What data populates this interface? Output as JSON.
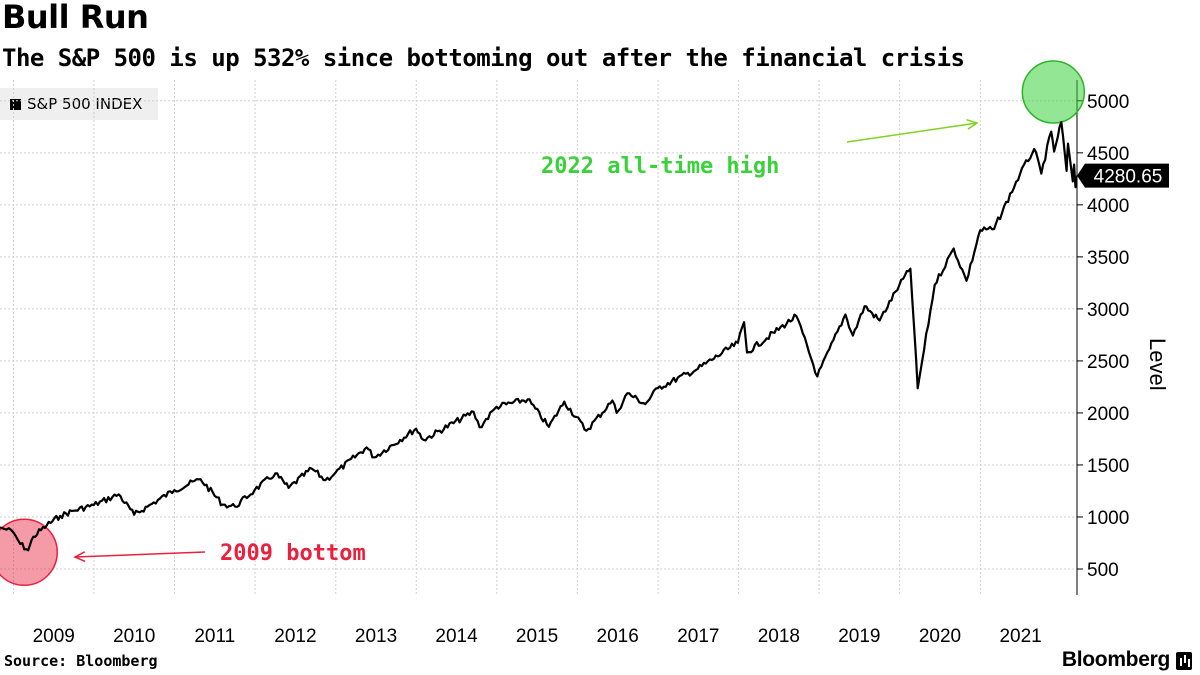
{
  "header": {
    "title": "Bull Run",
    "subtitle": "The S&P 500 is up 532% since bottoming out after the financial crisis"
  },
  "legend": {
    "label": "S&P 500 INDEX"
  },
  "footer": {
    "source": "Source: Bloomberg",
    "brand": "Bloomberg"
  },
  "colors": {
    "line": "#000000",
    "bottom_marker": "#e8213f",
    "high_marker": "#3ad13a",
    "high_arrow": "#7fd321",
    "grid": "#d0d0d0"
  },
  "chart_data": {
    "type": "line",
    "title": "Bull Run",
    "subtitle": "The S&P 500 is up 532% since bottoming out after the financial crisis",
    "ylabel": "Level",
    "xlabel": "",
    "grid": true,
    "legend_position": "top-left",
    "ylim": [
      250,
      5200
    ],
    "xlim": [
      "2008-11-01",
      "2022-03-15"
    ],
    "yticks": [
      500,
      1000,
      1500,
      2000,
      2500,
      3000,
      3500,
      4000,
      4500,
      5000
    ],
    "xticks": [
      "2009",
      "2010",
      "2011",
      "2012",
      "2013",
      "2014",
      "2015",
      "2016",
      "2017",
      "2018",
      "2019",
      "2020",
      "2021"
    ],
    "last_value_label": "4280.65",
    "series": [
      {
        "name": "S&P 500 INDEX",
        "points": [
          [
            "2008-11-01",
            900
          ],
          [
            "2008-12-01",
            880
          ],
          [
            "2009-01-01",
            850
          ],
          [
            "2009-02-01",
            740
          ],
          [
            "2009-03-09",
            680
          ],
          [
            "2009-04-01",
            810
          ],
          [
            "2009-06-01",
            920
          ],
          [
            "2009-08-01",
            1010
          ],
          [
            "2009-10-01",
            1060
          ],
          [
            "2009-12-31",
            1115
          ],
          [
            "2010-04-23",
            1217
          ],
          [
            "2010-07-02",
            1022
          ],
          [
            "2010-09-01",
            1100
          ],
          [
            "2010-12-31",
            1258
          ],
          [
            "2011-04-29",
            1363
          ],
          [
            "2011-08-08",
            1119
          ],
          [
            "2011-10-03",
            1099
          ],
          [
            "2011-12-30",
            1258
          ],
          [
            "2012-04-02",
            1419
          ],
          [
            "2012-06-01",
            1278
          ],
          [
            "2012-09-14",
            1465
          ],
          [
            "2012-11-15",
            1353
          ],
          [
            "2012-12-31",
            1426
          ],
          [
            "2013-05-21",
            1669
          ],
          [
            "2013-06-24",
            1573
          ],
          [
            "2013-12-31",
            1848
          ],
          [
            "2014-02-03",
            1741
          ],
          [
            "2014-09-18",
            2011
          ],
          [
            "2014-10-15",
            1862
          ],
          [
            "2014-12-31",
            2059
          ],
          [
            "2015-05-21",
            2131
          ],
          [
            "2015-08-25",
            1867
          ],
          [
            "2015-11-03",
            2109
          ],
          [
            "2016-02-11",
            1829
          ],
          [
            "2016-06-08",
            2119
          ],
          [
            "2016-06-27",
            2000
          ],
          [
            "2016-08-15",
            2190
          ],
          [
            "2016-11-04",
            2085
          ],
          [
            "2016-12-31",
            2239
          ],
          [
            "2017-06-30",
            2423
          ],
          [
            "2017-12-29",
            2674
          ],
          [
            "2018-01-26",
            2873
          ],
          [
            "2018-02-08",
            2581
          ],
          [
            "2018-09-20",
            2931
          ],
          [
            "2018-12-24",
            2351
          ],
          [
            "2019-04-30",
            2946
          ],
          [
            "2019-06-03",
            2744
          ],
          [
            "2019-07-26",
            3026
          ],
          [
            "2019-10-02",
            2888
          ],
          [
            "2019-12-31",
            3231
          ],
          [
            "2020-02-19",
            3386
          ],
          [
            "2020-03-23",
            2237
          ],
          [
            "2020-06-08",
            3232
          ],
          [
            "2020-09-02",
            3580
          ],
          [
            "2020-10-30",
            3270
          ],
          [
            "2020-12-31",
            3756
          ],
          [
            "2021-03-04",
            3768
          ],
          [
            "2021-06-30",
            4298
          ],
          [
            "2021-09-02",
            4537
          ],
          [
            "2021-10-04",
            4300
          ],
          [
            "2021-11-18",
            4704
          ],
          [
            "2021-12-01",
            4513
          ],
          [
            "2022-01-03",
            4796
          ],
          [
            "2022-01-27",
            4326
          ],
          [
            "2022-02-02",
            4589
          ],
          [
            "2022-02-24",
            4225
          ],
          [
            "2022-03-02",
            4387
          ],
          [
            "2022-03-08",
            4170
          ],
          [
            "2022-03-11",
            4280.65
          ]
        ]
      }
    ],
    "annotations": [
      {
        "text": "2009 bottom",
        "x": "2009-03-09",
        "y": 680,
        "color": "#e8213f"
      },
      {
        "text": "2022 all-time high",
        "x": "2022-01-03",
        "y": 4796,
        "color": "#3ad13a"
      }
    ]
  }
}
